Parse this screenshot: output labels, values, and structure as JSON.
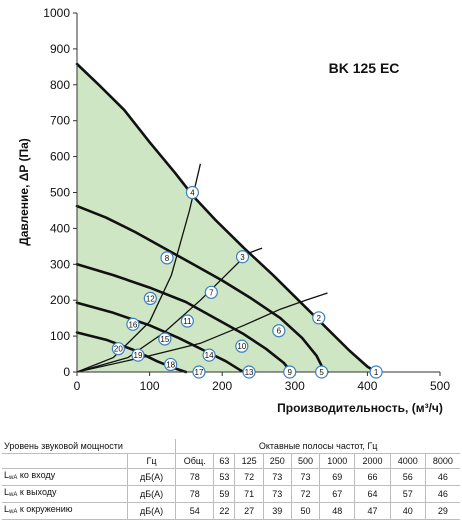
{
  "chart_data": {
    "type": "line",
    "title": "BK 125 EC",
    "xlabel": "Производительность, (м³/ч)",
    "ylabel": "Давление, ΔP (Па)",
    "xlim": [
      0,
      500
    ],
    "ylim": [
      0,
      1000
    ],
    "xticks": [
      0,
      100,
      200,
      300,
      400,
      500
    ],
    "yticks": [
      0,
      100,
      200,
      300,
      400,
      500,
      600,
      700,
      800,
      900,
      1000
    ],
    "grid": false,
    "region_color": "#cfe6c5",
    "fan_curves": [
      {
        "name": "",
        "points": [
          [
            0,
            858
          ],
          [
            30,
            800
          ],
          [
            65,
            730
          ],
          [
            100,
            640
          ],
          [
            135,
            555
          ],
          [
            160,
            490
          ],
          [
            190,
            425
          ],
          [
            230,
            345
          ],
          [
            270,
            270
          ],
          [
            310,
            190
          ],
          [
            345,
            120
          ],
          [
            375,
            60
          ],
          [
            400,
            15
          ],
          [
            412,
            0
          ]
        ]
      },
      {
        "name": "",
        "points": [
          [
            0,
            462
          ],
          [
            40,
            430
          ],
          [
            80,
            390
          ],
          [
            120,
            345
          ],
          [
            160,
            300
          ],
          [
            200,
            255
          ],
          [
            240,
            205
          ],
          [
            280,
            150
          ],
          [
            310,
            95
          ],
          [
            330,
            45
          ],
          [
            340,
            5
          ],
          [
            345,
            0
          ]
        ]
      },
      {
        "name": "",
        "points": [
          [
            0,
            300
          ],
          [
            50,
            270
          ],
          [
            100,
            235
          ],
          [
            150,
            195
          ],
          [
            190,
            150
          ],
          [
            230,
            105
          ],
          [
            260,
            65
          ],
          [
            285,
            25
          ],
          [
            295,
            0
          ]
        ]
      },
      {
        "name": "",
        "points": [
          [
            0,
            193
          ],
          [
            50,
            165
          ],
          [
            100,
            130
          ],
          [
            140,
            95
          ],
          [
            175,
            60
          ],
          [
            205,
            30
          ],
          [
            225,
            5
          ],
          [
            230,
            0
          ]
        ]
      },
      {
        "name": "",
        "points": [
          [
            0,
            110
          ],
          [
            40,
            90
          ],
          [
            80,
            60
          ],
          [
            110,
            30
          ],
          [
            135,
            10
          ],
          [
            150,
            0
          ]
        ]
      }
    ],
    "system_curves": [
      {
        "name": "",
        "points": [
          [
            0,
            0
          ],
          [
            50,
            40
          ],
          [
            100,
            140
          ],
          [
            130,
            270
          ],
          [
            155,
            450
          ],
          [
            170,
            580
          ]
        ]
      },
      {
        "name": "",
        "points": [
          [
            0,
            0
          ],
          [
            70,
            40
          ],
          [
            120,
            110
          ],
          [
            170,
            200
          ],
          [
            200,
            260
          ],
          [
            235,
            330
          ],
          [
            255,
            345
          ]
        ]
      },
      {
        "name": "",
        "points": [
          [
            0,
            0
          ],
          [
            100,
            45
          ],
          [
            170,
            80
          ],
          [
            230,
            130
          ],
          [
            280,
            175
          ],
          [
            315,
            200
          ],
          [
            345,
            220
          ]
        ]
      }
    ],
    "markers": [
      {
        "label": "1",
        "x": 412,
        "y": 0
      },
      {
        "label": "2",
        "x": 333,
        "y": 151
      },
      {
        "label": "3",
        "x": 228,
        "y": 321
      },
      {
        "label": "4",
        "x": 159,
        "y": 500
      },
      {
        "label": "5",
        "x": 337,
        "y": 0
      },
      {
        "label": "6",
        "x": 278,
        "y": 115
      },
      {
        "label": "7",
        "x": 185,
        "y": 222
      },
      {
        "label": "8",
        "x": 124,
        "y": 318
      },
      {
        "label": "9",
        "x": 293,
        "y": 0
      },
      {
        "label": "10",
        "x": 227,
        "y": 72
      },
      {
        "label": "11",
        "x": 152,
        "y": 142
      },
      {
        "label": "12",
        "x": 101,
        "y": 205
      },
      {
        "label": "13",
        "x": 237,
        "y": 0
      },
      {
        "label": "14",
        "x": 182,
        "y": 47
      },
      {
        "label": "15",
        "x": 121,
        "y": 92
      },
      {
        "label": "16",
        "x": 77,
        "y": 133
      },
      {
        "label": "17",
        "x": 168,
        "y": 0
      },
      {
        "label": "18",
        "x": 129,
        "y": 21
      },
      {
        "label": "19",
        "x": 84,
        "y": 47
      },
      {
        "label": "20",
        "x": 57,
        "y": 65
      }
    ]
  },
  "sound_table": {
    "title": "Уровень звуковой мощности",
    "bands_title": "Октавные полосы частот, Гц",
    "unit_label": "Гц",
    "total_label": "Общ.",
    "frequencies": [
      "63",
      "125",
      "250",
      "500",
      "1000",
      "2000",
      "4000",
      "8000"
    ],
    "rows": [
      {
        "label_main": "L",
        "label_sub": "wA",
        "label_rest": " ко входу",
        "unit": "дБ(А)",
        "total": "78",
        "values": [
          "53",
          "72",
          "73",
          "73",
          "69",
          "66",
          "56",
          "46"
        ]
      },
      {
        "label_main": "L",
        "label_sub": "wA",
        "label_rest": " к выходу",
        "unit": "дБ(А)",
        "total": "78",
        "values": [
          "59",
          "71",
          "73",
          "72",
          "67",
          "64",
          "57",
          "46"
        ]
      },
      {
        "label_main": "L",
        "label_sub": "wA",
        "label_rest": " к окружению",
        "unit": "дБ(А)",
        "total": "54",
        "values": [
          "22",
          "27",
          "39",
          "50",
          "48",
          "47",
          "40",
          "29"
        ]
      }
    ]
  }
}
